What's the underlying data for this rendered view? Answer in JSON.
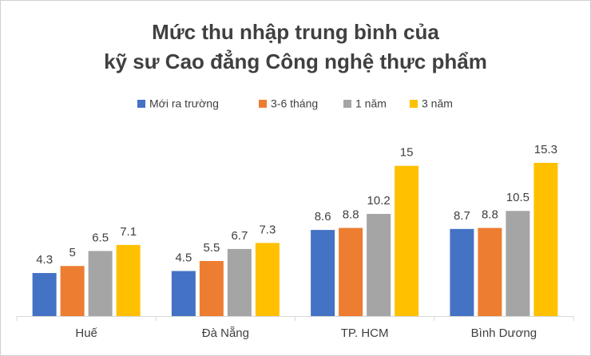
{
  "chart_data": {
    "type": "bar",
    "title": [
      "Mức thu nhập trung bình của",
      "kỹ sư Cao đẳng Công nghệ thực phẩm"
    ],
    "categories": [
      "Huế",
      "Đà Nẵng",
      "TP. HCM",
      "Bình Dương"
    ],
    "series": [
      {
        "name": "Mới ra trường",
        "color": "#4472c4",
        "values": [
          4.3,
          4.5,
          8.6,
          8.7
        ]
      },
      {
        "name": "3-6 tháng",
        "color": "#ed7d31",
        "values": [
          5,
          5.5,
          8.8,
          8.8
        ]
      },
      {
        "name": "1 năm",
        "color": "#a5a5a5",
        "values": [
          6.5,
          6.7,
          10.2,
          10.5
        ]
      },
      {
        "name": "3 năm",
        "color": "#ffc000",
        "values": [
          7.1,
          7.3,
          15,
          15.3
        ]
      }
    ],
    "legend": "top"
  }
}
